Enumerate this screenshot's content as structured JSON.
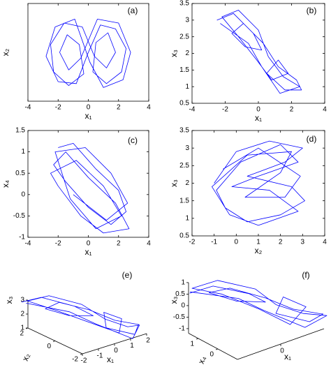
{
  "chart_data": [
    {
      "type": "line",
      "panel": "(a)",
      "xlabel": "x₁",
      "ylabel": "x₂",
      "xlim": [
        -4,
        4
      ],
      "ylim": [
        -1.5,
        3.5
      ],
      "xticks": [
        -4,
        -2,
        0,
        2,
        4
      ],
      "x": [
        0,
        0.8,
        1.8,
        2.5,
        2.2,
        1.2,
        0.3,
        0.5,
        1.3,
        1.8,
        1.2,
        0.4,
        -0.4,
        -1.6,
        -2.5,
        -2.3,
        -1.3,
        -0.3,
        -0.6,
        -1.4,
        -1.9,
        -1.3,
        -0.5,
        0.6,
        2,
        2.8,
        2.3,
        1,
        0.1,
        -0.9,
        -2.2,
        -2.8,
        -2,
        -0.8,
        0
      ],
      "series": [
        {
          "color": "#0000ff",
          "values": [
            1,
            2.4,
            2.2,
            1.2,
            0,
            -0.6,
            0,
            1.5,
            2,
            1,
            0.2,
            0.8,
            2.3,
            2.5,
            1.4,
            0,
            -0.7,
            -0.1,
            1.4,
            1.9,
            1,
            0.1,
            0.7,
            2.7,
            2.5,
            1,
            -0.4,
            -0.8,
            0.5,
            2.7,
            2.3,
            0.8,
            -0.5,
            -0.6,
            1
          ]
        }
      ]
    },
    {
      "type": "line",
      "panel": "(b)",
      "xlabel": "x₁",
      "ylabel": "x₃",
      "xlim": [
        -4,
        4
      ],
      "ylim": [
        0.5,
        3.5
      ],
      "xticks": [
        -4,
        -2,
        0,
        2,
        4
      ],
      "yticks": [
        0.5,
        1,
        1.5,
        2,
        2.5,
        3,
        3.5
      ],
      "x": [
        -2.5,
        -1.5,
        -0.3,
        0.2,
        -0.8,
        -1.6,
        -0.9,
        0.3,
        1.2,
        2.3,
        2.6,
        1.6,
        0.5,
        1.2,
        1.8,
        0.8,
        -0.1,
        -1.2,
        -2.2,
        -1.2,
        0,
        0.6,
        1.5,
        2.5,
        1.3,
        0.2,
        -0.6,
        -2.3
      ],
      "series": [
        {
          "color": "#0000ff",
          "values": [
            3.0,
            3.2,
            2.6,
            2.1,
            2.2,
            2.6,
            2.9,
            2.3,
            1.6,
            1.2,
            0.9,
            0.9,
            1.4,
            1.8,
            1.4,
            1.2,
            1.8,
            2.5,
            3.1,
            3.3,
            2.7,
            1.9,
            1.3,
            1.0,
            0.8,
            1.6,
            2.3,
            2.9
          ]
        }
      ]
    },
    {
      "type": "line",
      "panel": "(c)",
      "xlabel": "x₁",
      "ylabel": "x₄",
      "xlim": [
        -4,
        4
      ],
      "ylim": [
        -1,
        1.5
      ],
      "xticks": [
        -4,
        -2,
        0,
        2,
        4
      ],
      "yticks": [
        -1,
        -0.5,
        0,
        0.5,
        1,
        1.5
      ],
      "x": [
        -2,
        -1,
        0.5,
        2,
        2.5,
        1.5,
        0,
        -1.5,
        -2.3,
        -1.5,
        0,
        1.8,
        2.7,
        1,
        -0.5,
        -2,
        -2.5,
        -0.8,
        1,
        2.2,
        0.5,
        -1.2,
        -2.2,
        -0.2,
        1.5,
        2.6,
        1.2,
        -1
      ],
      "series": [
        {
          "color": "#0000ff",
          "values": [
            1.1,
            1.2,
            0.6,
            0.1,
            -0.4,
            -0.7,
            -0.3,
            0.3,
            0.7,
            1.0,
            0.4,
            -0.2,
            -0.8,
            -0.9,
            -0.5,
            0.2,
            0.5,
            0.8,
            0.2,
            -0.5,
            -0.8,
            -0.1,
            1.0,
            1.1,
            0.5,
            -0.2,
            -0.6,
            0.0
          ]
        }
      ]
    },
    {
      "type": "line",
      "panel": "(d)",
      "xlabel": "x₂",
      "ylabel": "x₃",
      "xlim": [
        -2,
        4
      ],
      "ylim": [
        0.5,
        3.5
      ],
      "xticks": [
        -2,
        -1,
        0,
        1,
        2,
        3,
        4
      ],
      "yticks": [
        0.5,
        1,
        1.5,
        2,
        2.5,
        3,
        3.5
      ],
      "x": [
        -1,
        0,
        1.5,
        3,
        2.2,
        0.5,
        2.5,
        3.1,
        2,
        0.5,
        -0.5,
        -0.9,
        0.2,
        2,
        2.8,
        1,
        -0.2,
        1.5,
        2.8,
        1,
        -0.3,
        -1.1,
        0.5,
        2.5,
        2,
        0.4,
        2.2,
        2.9,
        1,
        -0.6
      ],
      "series": [
        {
          "color": "#0000ff",
          "values": [
            2,
            2.9,
            3.2,
            3,
            2.6,
            2.2,
            1.9,
            1.5,
            1.1,
            0.9,
            1.3,
            1.8,
            2.6,
            3.1,
            2.6,
            2.2,
            1.9,
            1.8,
            1.2,
            0.8,
            1.1,
            1.9,
            2.8,
            2.9,
            2.3,
            1.6,
            1.6,
            2.2,
            3.0,
            2.4
          ]
        }
      ]
    },
    {
      "type": "line3d",
      "panel": "(e)",
      "xlabel": "x₁",
      "ylabel": "x₂",
      "zlabel": "x₃",
      "xlim": [
        -2,
        2
      ],
      "ylim": [
        -2,
        2
      ],
      "zlim": [
        1,
        3
      ],
      "xticks": [
        -2,
        -1,
        0,
        1,
        2
      ],
      "yticks": [
        2,
        0,
        -2
      ],
      "zticks": [
        3,
        2,
        1
      ],
      "series": [
        {
          "color": "#0000ff",
          "x": [
            -2.4,
            -1.5,
            -0.3,
            0.2,
            -0.8,
            -1.6,
            -0.9,
            0.3,
            1.2,
            2.2,
            2.5,
            1.6,
            0.5,
            1.2,
            1.8,
            0.8,
            -0.1,
            -1.2,
            -2.2,
            -1.2,
            0,
            0.6,
            1.5,
            2.4,
            1.3,
            0.2,
            -0.6,
            -2.2
          ],
          "y": [
            2.0,
            1.6,
            0.6,
            -0.2,
            0.4,
            1.2,
            1.0,
            0.2,
            -0.6,
            -1.2,
            -0.8,
            -1.6,
            -0.8,
            0.2,
            -0.4,
            -1.4,
            -0.6,
            0.8,
            1.8,
            1.4,
            0.4,
            -0.6,
            -1.2,
            -1.0,
            -1.8,
            -0.4,
            0.6,
            1.9
          ],
          "z": [
            3.0,
            3.2,
            2.6,
            2.1,
            2.2,
            2.6,
            2.9,
            2.3,
            1.6,
            1.2,
            0.9,
            0.9,
            1.4,
            1.8,
            1.4,
            1.2,
            1.8,
            2.5,
            3.1,
            3.3,
            2.7,
            1.9,
            1.3,
            1.0,
            0.8,
            1.6,
            2.3,
            2.9
          ]
        }
      ]
    },
    {
      "type": "line3d",
      "panel": "(f)",
      "xlabel": "x₁",
      "ylabel": "x₄",
      "zlabel": "x₃",
      "xlim": [
        -2,
        2
      ],
      "ylim": [
        -1,
        1.5
      ],
      "zlim": [
        -1.2,
        1
      ],
      "xticks": [
        0
      ],
      "yticks": [
        1,
        0
      ],
      "zticks": [
        1,
        0.5,
        0,
        -0.5,
        -1
      ],
      "series": [
        {
          "color": "#0000ff",
          "x": [
            -2.4,
            -1.5,
            -0.3,
            0.2,
            -0.8,
            -1.6,
            -0.9,
            0.3,
            1.2,
            2.2,
            2.5,
            1.6,
            0.5,
            1.2,
            1.8,
            0.8,
            -0.1,
            -1.2,
            -2.2,
            -1.2,
            0,
            0.6,
            1.5,
            2.4,
            1.3,
            0.2,
            -0.6,
            -2.2
          ],
          "y": [
            1.0,
            0.8,
            0.3,
            0,
            0.4,
            0.9,
            0.6,
            0.1,
            -0.3,
            -0.6,
            -0.4,
            -0.7,
            -0.2,
            0.2,
            -0.3,
            -0.6,
            0,
            0.7,
            1.1,
            0.9,
            0.3,
            -0.1,
            -0.5,
            -0.7,
            -0.8,
            0.1,
            0.5,
            1.2
          ],
          "z": [
            0.9,
            1.0,
            0.5,
            0.1,
            0.3,
            0.7,
            0.8,
            0.2,
            -0.4,
            -0.8,
            -1.0,
            -0.9,
            -0.4,
            -0.1,
            -0.5,
            -0.8,
            -0.1,
            0.6,
            1.0,
            1.1,
            0.6,
            -0.1,
            -0.6,
            -0.9,
            -1.0,
            -0.3,
            0.3,
            0.8
          ]
        }
      ]
    }
  ]
}
